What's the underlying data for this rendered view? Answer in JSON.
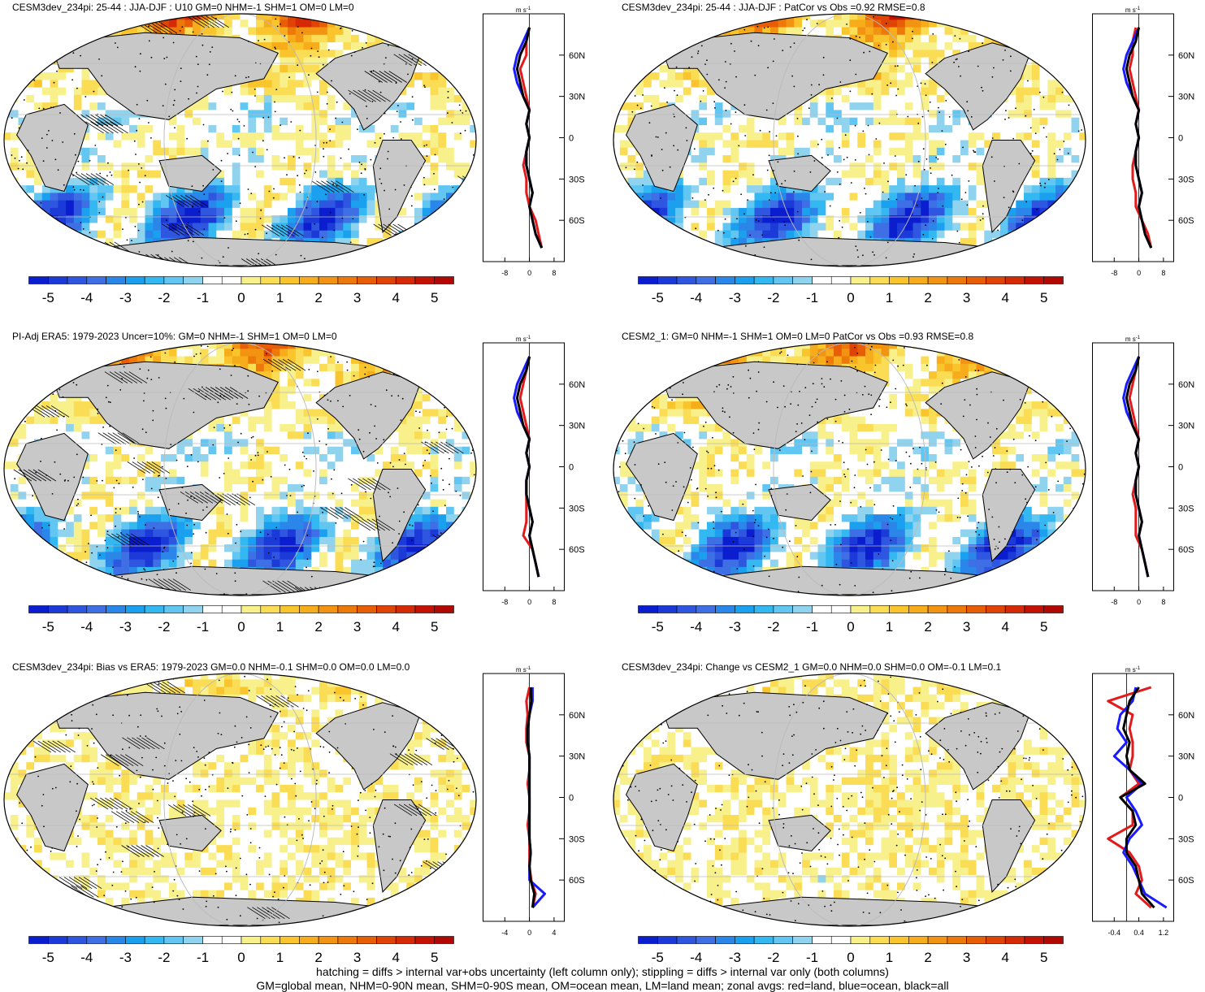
{
  "colorbar": {
    "colors": [
      "#0a1ecf",
      "#1c3ad8",
      "#2f56e0",
      "#3f6fe5",
      "#2a86e8",
      "#1aa0ee",
      "#33b8f1",
      "#61c7f2",
      "#8fd3ee",
      "#ffffff",
      "#ffffff",
      "#f8f08a",
      "#fbdc55",
      "#f9c42c",
      "#f6ac1b",
      "#f39312",
      "#ee790b",
      "#e85e07",
      "#df4306",
      "#d52a05",
      "#c51104",
      "#b10803"
    ],
    "labels": [
      "-5",
      "-4",
      "-3",
      "-2",
      "-1",
      "0",
      "1",
      "2",
      "3",
      "4",
      "5"
    ]
  },
  "lat_labels": [
    "60N",
    "30N",
    "0",
    "30S",
    "60S"
  ],
  "zonal_unit": "m s",
  "zonal_unit_sup": "-1",
  "legend_colors": {
    "land": "#e31a1c",
    "ocean": "#1a1aff",
    "all": "#000000"
  },
  "panels": [
    {
      "title": "CESM3dev_234pi: 25-44 : JJA-DJF : U10 GM=0 NHM=-1 SHM=1 OM=0 LM=0",
      "xticks": [
        "-8",
        "0",
        "8"
      ],
      "hatch": true
    },
    {
      "title": "CESM3dev_234pi: 25-44 : JJA-DJF : PatCor vs Obs =0.92 RMSE=0.8",
      "xticks": [
        "-8",
        "0",
        "8"
      ],
      "hatch": false
    },
    {
      "title": "PI-Adj ERA5: 1979-2023 Uncer=10%: GM=0 NHM=-1 SHM=1 OM=0 LM=0",
      "xticks": [
        "-8",
        "0",
        "8"
      ],
      "hatch": true
    },
    {
      "title": "CESM2_1: GM=0 NHM=-1 SHM=1 OM=0 LM=0 PatCor vs Obs =0.93 RMSE=0.8",
      "xticks": [
        "-8",
        "0",
        "8"
      ],
      "hatch": false
    },
    {
      "title": "CESM3dev_234pi: Bias vs ERA5: 1979-2023 GM=0.0 NHM=-0.1 SHM=0.0 OM=0.0 LM=0.0",
      "xticks": [
        "-4.0",
        "0.0",
        "4.0"
      ],
      "hatch": true
    },
    {
      "title": "CESM3dev_234pi: Change vs CESM2_1 GM=0.0 NHM=0.0 SHM=0.0 OM=-0.1 LM=0.1",
      "xticks": [
        "-0.4",
        "0.4",
        "1.2"
      ],
      "hatch": false
    }
  ],
  "chart_data": [
    {
      "type": "heatmap",
      "title": "CESM3dev_234pi: 25-44 : JJA-DJF : U10 GM=0 NHM=-1 SHM=1 OM=0 LM=0",
      "colorbar_range": [
        -5.5,
        5.5
      ],
      "zonal_lines": {
        "type": "line",
        "x_ticks": [
          -8,
          0,
          8
        ],
        "y_ticks": [
          "60N",
          "30N",
          "0",
          "30S",
          "60S"
        ],
        "lat": [
          80,
          70,
          60,
          50,
          40,
          30,
          20,
          10,
          0,
          -10,
          -20,
          -30,
          -40,
          -50,
          -60,
          -70,
          -80
        ],
        "series": [
          {
            "name": "land",
            "values": [
              0,
              -1,
              -1,
              -3,
              -2,
              -1,
              0,
              -1,
              0,
              -1,
              -2,
              -1,
              -1,
              0,
              2,
              3,
              4
            ]
          },
          {
            "name": "ocean",
            "values": [
              0,
              -2,
              -4,
              -5,
              -4,
              -2,
              0,
              -1,
              0,
              -1,
              -1,
              0,
              1,
              0,
              1,
              2,
              4
            ]
          },
          {
            "name": "all",
            "values": [
              0,
              -1,
              -3,
              -4,
              -3,
              -2,
              0,
              -1,
              0,
              -1,
              -1,
              0,
              1,
              0,
              1,
              2,
              4
            ]
          }
        ]
      }
    },
    {
      "type": "heatmap",
      "title": "CESM3dev_234pi: 25-44 : JJA-DJF : PatCor vs Obs =0.92 RMSE=0.8",
      "colorbar_range": [
        -5.5,
        5.5
      ],
      "zonal_lines": {
        "type": "line",
        "x_ticks": [
          -8,
          0,
          8
        ],
        "y_ticks": [
          "60N",
          "30N",
          "0",
          "30S",
          "60S"
        ],
        "lat": [
          80,
          70,
          60,
          50,
          40,
          30,
          20,
          10,
          0,
          -10,
          -20,
          -30,
          -40,
          -50,
          -60,
          -70,
          -80
        ],
        "series": [
          {
            "name": "land",
            "values": [
              -1,
              -2,
              -2,
              -3,
              -2,
              -1,
              0,
              -1,
              0,
              -1,
              -2,
              -2,
              -1,
              -1,
              1,
              3,
              4
            ]
          },
          {
            "name": "ocean",
            "values": [
              0,
              -2,
              -4,
              -5,
              -4,
              -2,
              0,
              -1,
              0,
              -1,
              -1,
              0,
              1,
              0,
              1,
              2,
              4
            ]
          },
          {
            "name": "all",
            "values": [
              0,
              -1,
              -3,
              -4,
              -3,
              -2,
              0,
              -1,
              0,
              -1,
              -1,
              0,
              1,
              0,
              1,
              2,
              4
            ]
          }
        ]
      }
    },
    {
      "type": "heatmap",
      "title": "PI-Adj ERA5: 1979-2023 Uncer=10%: GM=0 NHM=-1 SHM=1 OM=0 LM=0",
      "colorbar_range": [
        -5.5,
        5.5
      ],
      "zonal_lines": {
        "type": "line",
        "x_ticks": [
          -8,
          0,
          8
        ],
        "y_ticks": [
          "60N",
          "30N",
          "0",
          "30S",
          "60S"
        ],
        "lat": [
          80,
          70,
          60,
          50,
          40,
          30,
          20,
          10,
          0,
          -10,
          -20,
          -30,
          -40,
          -50,
          -60,
          -70,
          -80
        ],
        "series": [
          {
            "name": "land",
            "values": [
              0,
              -1,
              -2,
              -3,
              -2,
              -1,
              0,
              -1,
              0,
              -1,
              -1,
              -1,
              -1,
              -2,
              1,
              2,
              3
            ]
          },
          {
            "name": "ocean",
            "values": [
              0,
              -2,
              -4,
              -5,
              -4,
              -2,
              0,
              -1,
              0,
              -1,
              -1,
              0,
              1,
              0,
              1,
              2,
              3
            ]
          },
          {
            "name": "all",
            "values": [
              0,
              -1,
              -3,
              -4,
              -3,
              -2,
              0,
              -1,
              0,
              -1,
              -1,
              0,
              1,
              0,
              1,
              2,
              3
            ]
          }
        ]
      }
    },
    {
      "type": "heatmap",
      "title": "CESM2_1: GM=0 NHM=-1 SHM=1 OM=0 LM=0 PatCor vs Obs =0.93 RMSE=0.8",
      "colorbar_range": [
        -5.5,
        5.5
      ],
      "zonal_lines": {
        "type": "line",
        "x_ticks": [
          -8,
          0,
          8
        ],
        "y_ticks": [
          "60N",
          "30N",
          "0",
          "30S",
          "60S"
        ],
        "lat": [
          80,
          70,
          60,
          50,
          40,
          30,
          20,
          10,
          0,
          -10,
          -20,
          -30,
          -40,
          -50,
          -60,
          -70,
          -80
        ],
        "series": [
          {
            "name": "land",
            "values": [
              0,
              -1,
              -2,
              -3,
              -2,
              -1,
              0,
              -1,
              0,
              -1,
              -2,
              -1,
              -1,
              -1,
              1,
              2,
              3
            ]
          },
          {
            "name": "ocean",
            "values": [
              0,
              -2,
              -4,
              -5,
              -4,
              -2,
              0,
              -1,
              0,
              -1,
              -1,
              0,
              1,
              0,
              1,
              2,
              3
            ]
          },
          {
            "name": "all",
            "values": [
              0,
              -1,
              -3,
              -4,
              -3,
              -2,
              0,
              -1,
              0,
              -1,
              -1,
              0,
              1,
              0,
              1,
              2,
              3
            ]
          }
        ]
      }
    },
    {
      "type": "heatmap",
      "title": "CESM3dev_234pi: Bias vs ERA5: 1979-2023 GM=0.0 NHM=-0.1 SHM=0.0 OM=0.0 LM=0.0",
      "colorbar_range": [
        -5.5,
        5.5
      ],
      "zonal_lines": {
        "type": "line",
        "x_ticks": [
          -4.0,
          0.0,
          4.0
        ],
        "y_ticks": [
          "60N",
          "30N",
          "0",
          "30S",
          "60S"
        ],
        "lat": [
          80,
          70,
          60,
          50,
          40,
          30,
          20,
          10,
          0,
          -10,
          -20,
          -30,
          -40,
          -50,
          -60,
          -70,
          -80
        ],
        "series": [
          {
            "name": "land",
            "values": [
              0,
              -0.5,
              -0.3,
              -0.5,
              -0.5,
              0,
              0,
              -0.3,
              0,
              0,
              -0.3,
              0,
              0,
              0,
              0.3,
              1,
              0.5
            ]
          },
          {
            "name": "ocean",
            "values": [
              0.5,
              0.5,
              0,
              -0.3,
              -0.3,
              0,
              0,
              0,
              0,
              0,
              0,
              0,
              0.2,
              0,
              0,
              2.5,
              0.5
            ]
          },
          {
            "name": "all",
            "values": [
              0.2,
              0.3,
              0,
              -0.3,
              -0.3,
              0,
              0,
              0,
              0,
              0,
              0,
              0,
              0.2,
              0,
              0.2,
              0.8,
              0.5
            ]
          }
        ]
      }
    },
    {
      "type": "heatmap",
      "title": "CESM3dev_234pi: Change vs CESM2_1 GM=0.0 NHM=0.0 SHM=0.0 OM=-0.1 LM=0.1",
      "colorbar_range": [
        -5.5,
        5.5
      ],
      "zonal_lines": {
        "type": "line",
        "x_ticks": [
          -0.4,
          0.4,
          1.2
        ],
        "y_ticks": [
          "60N",
          "30N",
          "0",
          "30S",
          "60S"
        ],
        "lat": [
          80,
          70,
          60,
          50,
          40,
          30,
          20,
          10,
          0,
          -10,
          -20,
          -30,
          -40,
          -50,
          -60,
          -70,
          -80
        ],
        "series": [
          {
            "name": "land",
            "values": [
              0.8,
              -0.6,
              0.2,
              0.1,
              0.2,
              0.2,
              0.1,
              0.4,
              -0.2,
              0.2,
              0.2,
              -0.6,
              0.1,
              0.4,
              0.5,
              0.3,
              0.8
            ]
          },
          {
            "name": "ocean",
            "values": [
              0.3,
              0.2,
              -0.2,
              -0.3,
              0.0,
              -0.4,
              0.1,
              0.5,
              0.0,
              0.3,
              0.5,
              0.1,
              -0.1,
              0.2,
              0.4,
              0.6,
              1.3
            ]
          },
          {
            "name": "all",
            "values": [
              0.4,
              0.1,
              0.0,
              -0.1,
              0.1,
              0.0,
              0.1,
              0.6,
              -0.2,
              0.2,
              0.3,
              0.0,
              0.0,
              0.3,
              0.4,
              0.5,
              0.9
            ]
          }
        ]
      }
    }
  ],
  "footnote": {
    "line1": "hatching = diffs > internal var+obs uncertainty (left column only); stippling = diffs > internal var only (both columns)",
    "line2": "GM=global mean, NHM=0-90N mean, SHM=0-90S mean, OM=ocean mean, LM=land mean; zonal avgs: red=land, blue=ocean, black=all"
  }
}
